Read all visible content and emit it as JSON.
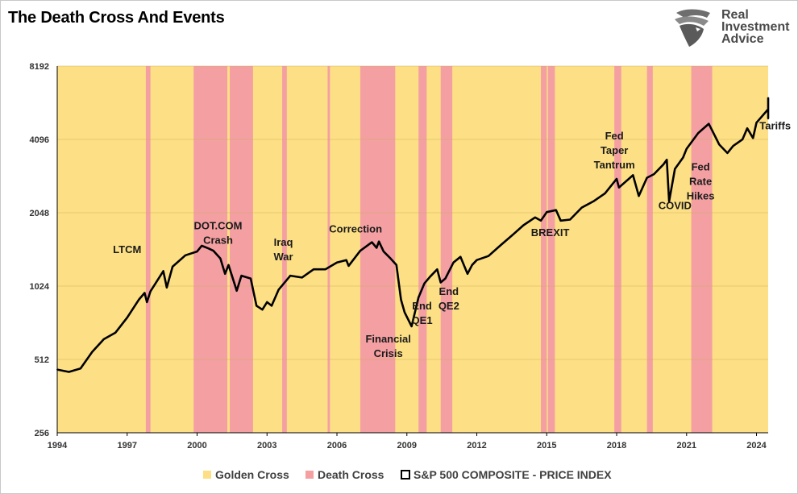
{
  "header": {
    "title": "The Death Cross And Events"
  },
  "logo": {
    "line1": "Real",
    "line2": "Investment",
    "line3": "Advice",
    "icon": "eagle-head-icon"
  },
  "colors": {
    "golden": "#fde085",
    "death": "#f4a0a2",
    "line": "#000000",
    "grid": "#c8a85a"
  },
  "chart_data": {
    "type": "line",
    "title": "The Death Cross And Events",
    "xlabel": "",
    "ylabel": "",
    "y_scale": "log2",
    "xlim": [
      1994,
      2024.5
    ],
    "ylim": [
      256,
      8192
    ],
    "y_ticks": [
      256,
      512,
      1024,
      2048,
      4096,
      8192
    ],
    "x_ticks": [
      1994,
      1997,
      2000,
      2003,
      2006,
      2009,
      2012,
      2015,
      2018,
      2021,
      2024
    ],
    "grid": "horizontal",
    "legend_position": "bottom",
    "legend": [
      {
        "label": "Golden Cross",
        "kind": "area",
        "color": "#fde085"
      },
      {
        "label": "Death Cross",
        "kind": "area",
        "color": "#f4a0a2"
      },
      {
        "label": "S&P 500 COMPOSITE - PRICE INDEX",
        "kind": "line",
        "color": "#000000"
      }
    ],
    "death_cross_periods": [
      [
        1997.8,
        1998.0
      ],
      [
        1999.85,
        2001.3
      ],
      [
        2001.4,
        2002.4
      ],
      [
        2003.65,
        2003.85
      ],
      [
        2005.6,
        2005.7
      ],
      [
        2007.0,
        2008.5
      ],
      [
        2009.5,
        2009.85
      ],
      [
        2010.45,
        2010.95
      ],
      [
        2014.75,
        2015.0
      ],
      [
        2015.05,
        2015.35
      ],
      [
        2017.9,
        2018.2
      ],
      [
        2019.3,
        2019.55
      ],
      [
        2021.2,
        2022.1
      ]
    ],
    "series": [
      {
        "name": "S&P 500 COMPOSITE - PRICE INDEX",
        "points": [
          [
            1994.0,
            465
          ],
          [
            1994.5,
            455
          ],
          [
            1995.0,
            470
          ],
          [
            1995.5,
            550
          ],
          [
            1996.0,
            620
          ],
          [
            1996.5,
            660
          ],
          [
            1997.0,
            760
          ],
          [
            1997.5,
            900
          ],
          [
            1997.75,
            960
          ],
          [
            1997.85,
            880
          ],
          [
            1998.0,
            975
          ],
          [
            1998.55,
            1180
          ],
          [
            1998.7,
            1010
          ],
          [
            1998.95,
            1230
          ],
          [
            1999.5,
            1370
          ],
          [
            2000.0,
            1420
          ],
          [
            2000.2,
            1500
          ],
          [
            2000.5,
            1460
          ],
          [
            2000.7,
            1430
          ],
          [
            2001.0,
            1330
          ],
          [
            2001.2,
            1150
          ],
          [
            2001.35,
            1250
          ],
          [
            2001.7,
            980
          ],
          [
            2001.9,
            1130
          ],
          [
            2002.3,
            1100
          ],
          [
            2002.55,
            850
          ],
          [
            2002.8,
            820
          ],
          [
            2003.0,
            880
          ],
          [
            2003.2,
            850
          ],
          [
            2003.5,
            990
          ],
          [
            2004.0,
            1130
          ],
          [
            2004.5,
            1110
          ],
          [
            2005.0,
            1200
          ],
          [
            2005.5,
            1200
          ],
          [
            2005.7,
            1230
          ],
          [
            2006.0,
            1280
          ],
          [
            2006.4,
            1310
          ],
          [
            2006.5,
            1240
          ],
          [
            2007.0,
            1430
          ],
          [
            2007.5,
            1550
          ],
          [
            2007.7,
            1470
          ],
          [
            2007.8,
            1560
          ],
          [
            2008.0,
            1420
          ],
          [
            2008.3,
            1330
          ],
          [
            2008.55,
            1250
          ],
          [
            2008.75,
            900
          ],
          [
            2008.9,
            800
          ],
          [
            2009.2,
            700
          ],
          [
            2009.5,
            920
          ],
          [
            2009.75,
            1050
          ],
          [
            2010.0,
            1120
          ],
          [
            2010.3,
            1200
          ],
          [
            2010.45,
            1060
          ],
          [
            2010.65,
            1100
          ],
          [
            2011.0,
            1280
          ],
          [
            2011.3,
            1350
          ],
          [
            2011.6,
            1150
          ],
          [
            2011.8,
            1250
          ],
          [
            2012.0,
            1310
          ],
          [
            2012.5,
            1360
          ],
          [
            2013.0,
            1500
          ],
          [
            2013.5,
            1650
          ],
          [
            2014.0,
            1820
          ],
          [
            2014.5,
            1960
          ],
          [
            2014.75,
            1900
          ],
          [
            2015.0,
            2060
          ],
          [
            2015.4,
            2100
          ],
          [
            2015.6,
            1900
          ],
          [
            2016.0,
            1920
          ],
          [
            2016.5,
            2150
          ],
          [
            2017.0,
            2280
          ],
          [
            2017.5,
            2460
          ],
          [
            2018.0,
            2820
          ],
          [
            2018.1,
            2600
          ],
          [
            2018.7,
            2920
          ],
          [
            2018.95,
            2400
          ],
          [
            2019.3,
            2850
          ],
          [
            2019.6,
            2950
          ],
          [
            2020.0,
            3230
          ],
          [
            2020.15,
            3380
          ],
          [
            2020.25,
            2280
          ],
          [
            2020.5,
            3100
          ],
          [
            2020.85,
            3450
          ],
          [
            2021.0,
            3750
          ],
          [
            2021.5,
            4350
          ],
          [
            2021.95,
            4750
          ],
          [
            2022.0,
            4650
          ],
          [
            2022.4,
            3900
          ],
          [
            2022.75,
            3600
          ],
          [
            2023.0,
            3850
          ],
          [
            2023.4,
            4100
          ],
          [
            2023.6,
            4550
          ],
          [
            2023.85,
            4150
          ],
          [
            2024.0,
            4800
          ],
          [
            2024.5,
            5450
          ],
          [
            2024.85,
            5900
          ],
          [
            2025.05,
            6050
          ],
          [
            2025.2,
            5600
          ],
          [
            2025.28,
            4980
          ]
        ]
      }
    ],
    "annotations": [
      {
        "id": "ltcm",
        "lines": [
          "LTCM"
        ],
        "x": 1997.0,
        "y": 1400
      },
      {
        "id": "dotcom",
        "lines": [
          "DOT.COM",
          "Crash"
        ],
        "x": 2000.9,
        "y": 1750
      },
      {
        "id": "iraq",
        "lines": [
          "Iraq",
          "War"
        ],
        "x": 2003.7,
        "y": 1500
      },
      {
        "id": "correction",
        "lines": [
          "Correction"
        ],
        "x": 2006.8,
        "y": 1700
      },
      {
        "id": "financial",
        "lines": [
          "Financial",
          "Crisis"
        ],
        "x": 2008.2,
        "y": 600
      },
      {
        "id": "qe1",
        "lines": [
          "End",
          "QE1"
        ],
        "x": 2009.65,
        "y": 820
      },
      {
        "id": "qe2",
        "lines": [
          "End",
          "QE2"
        ],
        "x": 2010.8,
        "y": 940
      },
      {
        "id": "brexit",
        "lines": [
          "BREXIT"
        ],
        "x": 2015.15,
        "y": 1640
      },
      {
        "id": "taper",
        "lines": [
          "Fed",
          "Taper",
          "Tantrum"
        ],
        "x": 2017.9,
        "y": 4100
      },
      {
        "id": "covid",
        "lines": [
          "COVID"
        ],
        "x": 2020.5,
        "y": 2120
      },
      {
        "id": "hikes",
        "lines": [
          "Fed",
          "Rate",
          "Hikes"
        ],
        "x": 2021.6,
        "y": 3050
      },
      {
        "id": "tariffs",
        "lines": [
          "Tariffs"
        ],
        "x": 2024.8,
        "y": 4500
      }
    ]
  }
}
